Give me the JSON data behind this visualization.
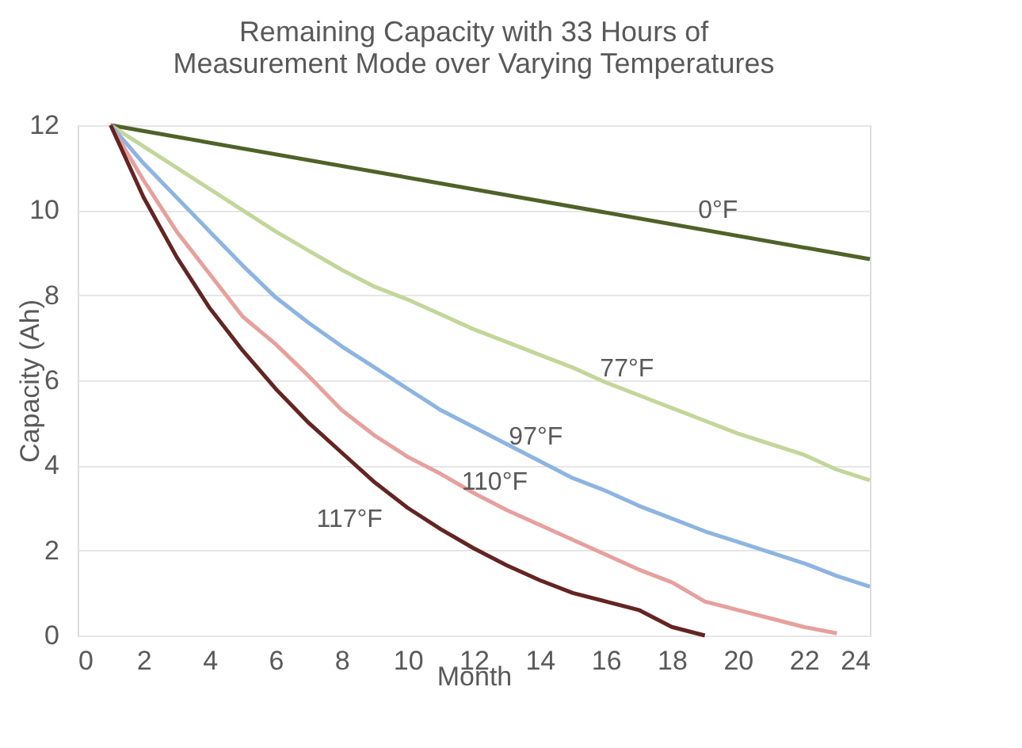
{
  "chart_data": {
    "type": "line",
    "title": "Remaining Capacity with 33 Hours of Measurement Mode over Varying Temperatures",
    "xlabel": "Month",
    "ylabel": "Capacity (Ah)",
    "series": [
      {
        "name": "0°F",
        "color": "#4f6228",
        "x": [
          1,
          24
        ],
        "values": [
          12,
          8.85
        ]
      },
      {
        "name": "77°F",
        "color": "#c3d69b",
        "x": [
          1,
          2,
          3,
          4,
          5,
          6,
          7,
          8,
          9,
          10,
          11,
          12,
          13,
          14,
          15,
          16,
          17,
          18,
          19,
          20,
          21,
          22,
          23,
          24
        ],
        "values": [
          12,
          11.5,
          11.0,
          10.5,
          10.0,
          9.5,
          9.05,
          8.6,
          8.2,
          7.9,
          7.55,
          7.2,
          6.9,
          6.6,
          6.3,
          5.95,
          5.65,
          5.35,
          5.05,
          4.75,
          4.5,
          4.25,
          3.9,
          3.65
        ]
      },
      {
        "name": "97°F",
        "color": "#8db4e2",
        "x": [
          1,
          2,
          3,
          4,
          5,
          6,
          7,
          8,
          9,
          10,
          11,
          12,
          13,
          14,
          15,
          16,
          17,
          18,
          19,
          20,
          21,
          22,
          23,
          24
        ],
        "values": [
          12,
          11.1,
          10.3,
          9.5,
          8.7,
          7.95,
          7.35,
          6.8,
          6.3,
          5.8,
          5.3,
          4.9,
          4.5,
          4.1,
          3.7,
          3.4,
          3.05,
          2.75,
          2.45,
          2.2,
          1.95,
          1.7,
          1.4,
          1.15
        ]
      },
      {
        "name": "110°F",
        "color": "#e6a09e",
        "x": [
          1,
          2,
          3,
          4,
          5,
          6,
          7,
          8,
          9,
          10,
          11,
          12,
          13,
          14,
          15,
          16,
          17,
          18,
          19,
          20,
          21,
          22,
          23
        ],
        "values": [
          12,
          10.7,
          9.5,
          8.5,
          7.5,
          6.85,
          6.1,
          5.3,
          4.7,
          4.2,
          3.8,
          3.35,
          2.95,
          2.6,
          2.25,
          1.9,
          1.55,
          1.25,
          0.8,
          0.6,
          0.4,
          0.2,
          0.05
        ]
      },
      {
        "name": "117°F",
        "color": "#632523",
        "x": [
          1,
          2,
          3,
          4,
          5,
          6,
          7,
          8,
          9,
          10,
          11,
          12,
          13,
          14,
          15,
          16,
          17,
          18,
          19
        ],
        "values": [
          12,
          10.3,
          8.9,
          7.7,
          6.7,
          5.8,
          5.0,
          4.3,
          3.6,
          3.0,
          2.5,
          2.05,
          1.65,
          1.3,
          1.0,
          0.8,
          0.6,
          0.2,
          0
        ]
      }
    ],
    "xlim": [
      0,
      24
    ],
    "xticks": [
      0,
      2,
      4,
      6,
      8,
      10,
      12,
      14,
      16,
      18,
      20,
      22,
      24
    ],
    "ylim": [
      0,
      12
    ],
    "yticks": [
      0,
      2,
      4,
      6,
      8,
      10,
      12
    ],
    "grid": "y",
    "legend": false,
    "marker": "none",
    "line_style": "solid"
  }
}
